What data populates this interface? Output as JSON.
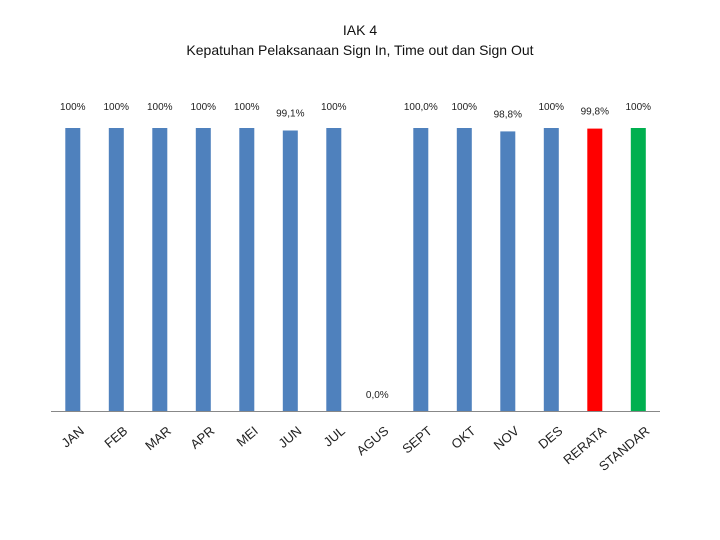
{
  "title_line1": "IAK 4",
  "title_line2": "Kepatuhan Pelaksanaan Sign In, Time out dan Sign Out",
  "colors": {
    "default_bar": "#4F81BD",
    "rerata_bar": "#FF0000",
    "standar_bar": "#00B050",
    "axis": "#888888"
  },
  "chart_data": {
    "type": "bar",
    "title": "IAK 4 Kepatuhan Pelaksanaan Sign In, Time out dan Sign Out",
    "categories": [
      "JAN",
      "FEB",
      "MAR",
      "APR",
      "MEI",
      "JUN",
      "JUL",
      "AGUS",
      "SEPT",
      "OKT",
      "NOV",
      "DES",
      "RERATA",
      "STANDAR"
    ],
    "values": [
      100,
      100,
      100,
      100,
      100,
      99.1,
      100,
      0,
      100,
      100,
      98.8,
      100,
      99.8,
      100
    ],
    "data_labels": [
      "100%",
      "100%",
      "100%",
      "100%",
      "100%",
      "99,1%",
      "100%",
      "0,0%",
      "100,0%",
      "100%",
      "98,8%",
      "100%",
      "99,8%",
      "100%"
    ],
    "bar_colors": [
      "#4F81BD",
      "#4F81BD",
      "#4F81BD",
      "#4F81BD",
      "#4F81BD",
      "#4F81BD",
      "#4F81BD",
      "#4F81BD",
      "#4F81BD",
      "#4F81BD",
      "#4F81BD",
      "#4F81BD",
      "#FF0000",
      "#00B050"
    ],
    "ylim": [
      0,
      100
    ],
    "grid": false,
    "legend": "none"
  }
}
